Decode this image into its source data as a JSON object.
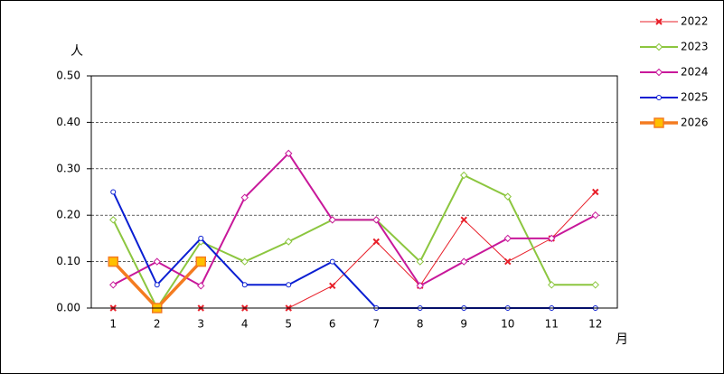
{
  "chart_data": {
    "type": "line",
    "y_label": "人",
    "x_label": "月",
    "categories": [
      "1",
      "2",
      "3",
      "4",
      "5",
      "6",
      "7",
      "8",
      "9",
      "10",
      "11",
      "12"
    ],
    "ylim": [
      0,
      0.5
    ],
    "yticks": [
      {
        "value": 0,
        "label": "0.00"
      },
      {
        "value": 0.1,
        "label": "0.10"
      },
      {
        "value": 0.2,
        "label": "0.20"
      },
      {
        "value": 0.3,
        "label": "0.30"
      },
      {
        "value": 0.4,
        "label": "0.40"
      },
      {
        "value": 0.5,
        "label": "0.50"
      }
    ],
    "grid": true,
    "legend": "right",
    "series": [
      {
        "name": "2022",
        "color": "#e8202a",
        "marker": "cross",
        "line_width": 1,
        "values": [
          0,
          0,
          0,
          0,
          0,
          0.048,
          0.143,
          0.048,
          0.19,
          0.1,
          0.15,
          0.25
        ]
      },
      {
        "name": "2023",
        "color": "#8cc63f",
        "marker": "diamond",
        "line_width": 2,
        "values": [
          0.19,
          0,
          0.143,
          0.1,
          0.143,
          0.19,
          0.19,
          0.1,
          0.286,
          0.24,
          0.05,
          0.05
        ]
      },
      {
        "name": "2024",
        "color": "#c8189a",
        "marker": "diamond",
        "line_width": 2,
        "values": [
          0.05,
          0.1,
          0.048,
          0.238,
          0.333,
          0.19,
          0.19,
          0.048,
          0.1,
          0.15,
          0.15,
          0.2
        ]
      },
      {
        "name": "2025",
        "color": "#0a1ed2",
        "marker": "circle",
        "line_width": 2,
        "values": [
          0.25,
          0.05,
          0.15,
          0.05,
          0.05,
          0.1,
          0,
          0,
          0,
          0,
          0,
          0
        ]
      },
      {
        "name": "2026",
        "color": "#f47b20",
        "marker": "square",
        "line_width": 3.5,
        "values": [
          0.1,
          0,
          0.1,
          null,
          null,
          null,
          null,
          null,
          null,
          null,
          null,
          null
        ]
      }
    ]
  }
}
